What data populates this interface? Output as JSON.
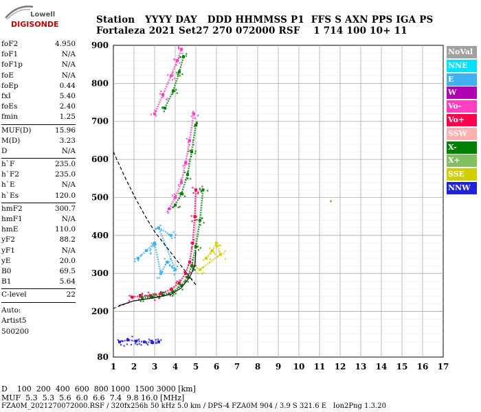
{
  "logo": {
    "top": "Lowell",
    "bottom": "DIGISONDE"
  },
  "header": {
    "labels": "Station   YYYY DAY   DDD HHMMSS P1  FFS S AXN PPS IGA PS",
    "values": "Fortaleza 2021 Set27 270 072000 RSF    1 714 100 10+ 11"
  },
  "params": {
    "groups": [
      [
        {
          "name": "foF2",
          "value": "4.950"
        },
        {
          "name": "foF1",
          "value": "N/A"
        },
        {
          "name": "foF1p",
          "value": "N/A"
        },
        {
          "name": "foE",
          "value": "N/A"
        },
        {
          "name": "foEp",
          "value": "0.44"
        },
        {
          "name": "fxI",
          "value": "5.40"
        },
        {
          "name": "foEs",
          "value": "2.40"
        },
        {
          "name": "fmin",
          "value": "1.25"
        }
      ],
      [
        {
          "name": "MUF(D)",
          "value": "15.96"
        },
        {
          "name": "M(D)",
          "value": "3.23"
        },
        {
          "name": "D",
          "value": "N/A"
        }
      ],
      [
        {
          "name": "h`F",
          "value": "235.0"
        },
        {
          "name": "h`F2",
          "value": "235.0"
        },
        {
          "name": "h`E",
          "value": "N/A"
        },
        {
          "name": "h`Es",
          "value": "120.0"
        }
      ],
      [
        {
          "name": "hmF2",
          "value": "300.7"
        },
        {
          "name": "hmF1",
          "value": "N/A"
        },
        {
          "name": "hmE",
          "value": "110.0"
        },
        {
          "name": "yF2",
          "value": "88.2"
        },
        {
          "name": "yF1",
          "value": "N/A"
        },
        {
          "name": "yE",
          "value": "20.0"
        },
        {
          "name": "B0",
          "value": "69.5"
        },
        {
          "name": "B1",
          "value": "5.64"
        }
      ],
      [
        {
          "name": "C-level",
          "value": "22"
        }
      ]
    ],
    "footer": [
      "Auto:",
      "Artist5",
      "500200"
    ]
  },
  "legend": [
    {
      "label": "NoVal",
      "color": "#a0a0a0"
    },
    {
      "label": "NNE",
      "color": "#00e0ff"
    },
    {
      "label": "E",
      "color": "#40b0f0"
    },
    {
      "label": "W",
      "color": "#b000b0"
    },
    {
      "label": "Vo-",
      "color": "#ff40c0"
    },
    {
      "label": "Vo+",
      "color": "#ff0050"
    },
    {
      "label": "SSW",
      "color": "#ffb0b0"
    },
    {
      "label": "X-",
      "color": "#008000"
    },
    {
      "label": "X+",
      "color": "#80c060"
    },
    {
      "label": "SSE",
      "color": "#d0d000"
    },
    {
      "label": "NNW",
      "color": "#2020e0"
    }
  ],
  "bottom": {
    "line1": "D    100  200  400  600  800 1000  1500 3000 [km]",
    "line2": "MUF  5.3  5.3  5.6  6.0  6.6  7.4  9.8 16.0 [MHz]",
    "line3": "FZA0M_2021270072000.RSF / 320fx256h 50 kHz 5.0 km / DPS-4 FZA0M 904 / 3.9 S 321.6 E   Ion2Png 1.3.20"
  },
  "chart_data": {
    "type": "scatter",
    "x_range": [
      1,
      17
    ],
    "y_range": [
      80,
      900
    ],
    "x_ticks": [
      "1",
      "2",
      "3",
      "4",
      "5",
      "6",
      "7",
      "8",
      "9",
      "10",
      "11",
      "12",
      "13",
      "14",
      "15",
      "16",
      "17"
    ],
    "y_ticks": [
      "80",
      "200",
      "300",
      "400",
      "500",
      "600",
      "700",
      "800",
      "900"
    ],
    "grid": true,
    "traces": [
      {
        "name": "O-trace",
        "color": "#ff0050",
        "points": [
          [
            1.9,
            238
          ],
          [
            2.3,
            240
          ],
          [
            2.8,
            242
          ],
          [
            3.3,
            247
          ],
          [
            3.8,
            258
          ],
          [
            4.2,
            275
          ],
          [
            4.5,
            300
          ],
          [
            4.7,
            330
          ],
          [
            4.85,
            380
          ],
          [
            4.95,
            450
          ],
          [
            5.0,
            520
          ]
        ]
      },
      {
        "name": "X-trace",
        "color": "#008000",
        "points": [
          [
            2.4,
            236
          ],
          [
            2.9,
            238
          ],
          [
            3.4,
            243
          ],
          [
            3.9,
            252
          ],
          [
            4.3,
            268
          ],
          [
            4.6,
            290
          ],
          [
            4.8,
            320
          ],
          [
            5.0,
            370
          ],
          [
            5.2,
            440
          ],
          [
            5.35,
            520
          ]
        ]
      },
      {
        "name": "2nd-hop-O",
        "color": "#ff40c0",
        "points": [
          [
            3.7,
            470
          ],
          [
            4.0,
            500
          ],
          [
            4.3,
            540
          ],
          [
            4.5,
            590
          ],
          [
            4.7,
            650
          ],
          [
            4.9,
            720
          ]
        ]
      },
      {
        "name": "2nd-hop-X",
        "color": "#008000",
        "points": [
          [
            4.0,
            480
          ],
          [
            4.3,
            510
          ],
          [
            4.6,
            560
          ],
          [
            4.8,
            620
          ],
          [
            5.0,
            690
          ]
        ]
      },
      {
        "name": "3rd-hop",
        "color": "#ff40c0",
        "points": [
          [
            3.0,
            720
          ],
          [
            3.4,
            770
          ],
          [
            3.8,
            820
          ],
          [
            4.1,
            860
          ],
          [
            4.3,
            890
          ]
        ]
      },
      {
        "name": "3rd-hop-X",
        "color": "#008000",
        "points": [
          [
            3.5,
            735
          ],
          [
            3.9,
            780
          ],
          [
            4.2,
            830
          ],
          [
            4.4,
            870
          ]
        ]
      },
      {
        "name": "spread-F",
        "color": "#40b0f0",
        "points": [
          [
            2.2,
            340
          ],
          [
            2.6,
            360
          ],
          [
            3.0,
            380
          ],
          [
            3.3,
            300
          ],
          [
            3.6,
            330
          ],
          [
            4.0,
            310
          ],
          [
            3.2,
            420
          ],
          [
            3.8,
            400
          ]
        ]
      },
      {
        "name": "Es-layer",
        "color": "#2020e0",
        "points": [
          [
            1.3,
            120
          ],
          [
            1.7,
            125
          ],
          [
            2.1,
            122
          ],
          [
            2.5,
            120
          ],
          [
            2.9,
            118
          ],
          [
            3.2,
            120
          ]
        ]
      },
      {
        "name": "oblique",
        "color": "#d0d000",
        "points": [
          [
            5.5,
            340
          ],
          [
            5.8,
            360
          ],
          [
            6.0,
            380
          ],
          [
            6.2,
            350
          ],
          [
            5.2,
            310
          ]
        ]
      }
    ],
    "profile": {
      "name": "electron-density-profile",
      "color": "#000000",
      "points": [
        [
          1.25,
          215
        ],
        [
          2.0,
          228
        ],
        [
          3.0,
          236
        ],
        [
          3.8,
          245
        ],
        [
          4.3,
          262
        ],
        [
          4.7,
          290
        ],
        [
          4.95,
          320
        ],
        [
          5.0,
          360
        ]
      ]
    },
    "muf_curve": {
      "name": "muf-dashed",
      "color": "#000000",
      "points": [
        [
          1.0,
          620
        ],
        [
          1.5,
          560
        ],
        [
          2.0,
          505
        ],
        [
          2.5,
          455
        ],
        [
          3.0,
          410
        ],
        [
          3.5,
          375
        ],
        [
          4.0,
          340
        ],
        [
          4.5,
          305
        ],
        [
          5.0,
          270
        ]
      ]
    }
  }
}
